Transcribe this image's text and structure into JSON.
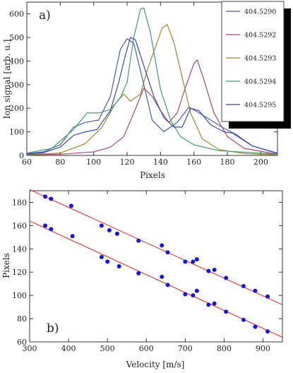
{
  "chart_data": [
    {
      "type": "line",
      "panel_label": "a)",
      "xlabel": "Pixels",
      "ylabel": "Ion signal [arb. u.]",
      "xlim": [
        60,
        210
      ],
      "ylim": [
        0,
        650
      ],
      "xticks": [
        60,
        80,
        100,
        120,
        140,
        160,
        180,
        200
      ],
      "yticks": [
        0,
        100,
        200,
        300,
        400,
        500,
        600
      ],
      "legend_position": "top-right",
      "series": [
        {
          "name": "404.5290",
          "color": "#4a5ab0",
          "points": [
            [
              60,
              8
            ],
            [
              70,
              15
            ],
            [
              80,
              45
            ],
            [
              88,
              120
            ],
            [
              95,
              140
            ],
            [
              103,
              150
            ],
            [
              110,
              250
            ],
            [
              116,
              450
            ],
            [
              120,
              495
            ],
            [
              124,
              475
            ],
            [
              128,
              360
            ],
            [
              135,
              150
            ],
            [
              142,
              100
            ],
            [
              150,
              140
            ],
            [
              157,
              205
            ],
            [
              162,
              185
            ],
            [
              170,
              150
            ],
            [
              178,
              115
            ],
            [
              185,
              90
            ],
            [
              195,
              40
            ],
            [
              210,
              10
            ]
          ]
        },
        {
          "name": "404.5292",
          "color": "#a8457a",
          "points": [
            [
              60,
              2
            ],
            [
              80,
              5
            ],
            [
              100,
              15
            ],
            [
              110,
              35
            ],
            [
              118,
              80
            ],
            [
              124,
              180
            ],
            [
              130,
              285
            ],
            [
              135,
              250
            ],
            [
              140,
              190
            ],
            [
              145,
              140
            ],
            [
              150,
              180
            ],
            [
              155,
              290
            ],
            [
              160,
              390
            ],
            [
              162,
              405
            ],
            [
              166,
              320
            ],
            [
              172,
              180
            ],
            [
              180,
              80
            ],
            [
              190,
              30
            ],
            [
              210,
              5
            ]
          ]
        },
        {
          "name": "404.5293",
          "color": "#9a8a2a",
          "points": [
            [
              60,
              3
            ],
            [
              80,
              10
            ],
            [
              95,
              50
            ],
            [
              105,
              120
            ],
            [
              113,
              220
            ],
            [
              118,
              260
            ],
            [
              122,
              230
            ],
            [
              128,
              260
            ],
            [
              132,
              360
            ],
            [
              137,
              460
            ],
            [
              141,
              540
            ],
            [
              144,
              555
            ],
            [
              148,
              480
            ],
            [
              153,
              330
            ],
            [
              158,
              180
            ],
            [
              165,
              70
            ],
            [
              175,
              25
            ],
            [
              190,
              8
            ],
            [
              210,
              2
            ]
          ]
        },
        {
          "name": "404.5294",
          "color": "#3e9e6e",
          "points": [
            [
              60,
              10
            ],
            [
              75,
              30
            ],
            [
              88,
              110
            ],
            [
              96,
              180
            ],
            [
              103,
              180
            ],
            [
              110,
              195
            ],
            [
              116,
              245
            ],
            [
              120,
              310
            ],
            [
              124,
              500
            ],
            [
              128,
              620
            ],
            [
              130,
              625
            ],
            [
              134,
              520
            ],
            [
              140,
              280
            ],
            [
              146,
              150
            ],
            [
              152,
              80
            ],
            [
              160,
              45
            ],
            [
              175,
              20
            ],
            [
              210,
              5
            ]
          ]
        },
        {
          "name": "404.5295",
          "color": "#3448b8",
          "points": [
            [
              60,
              5
            ],
            [
              70,
              12
            ],
            [
              80,
              35
            ],
            [
              88,
              85
            ],
            [
              95,
              100
            ],
            [
              102,
              110
            ],
            [
              110,
              190
            ],
            [
              115,
              310
            ],
            [
              119,
              425
            ],
            [
              122,
              500
            ],
            [
              125,
              490
            ],
            [
              130,
              380
            ],
            [
              136,
              250
            ],
            [
              142,
              160
            ],
            [
              148,
              120
            ],
            [
              153,
              120
            ],
            [
              158,
              200
            ],
            [
              163,
              190
            ],
            [
              170,
              130
            ],
            [
              178,
              100
            ],
            [
              183,
              95
            ],
            [
              195,
              40
            ],
            [
              210,
              8
            ]
          ]
        }
      ]
    },
    {
      "type": "scatter",
      "panel_label": "b)",
      "xlabel": "Velocity [m/s]",
      "ylabel": "Pixels",
      "xlim": [
        300,
        950
      ],
      "ylim": [
        60,
        190
      ],
      "xticks": [
        300,
        400,
        500,
        600,
        700,
        800,
        900
      ],
      "yticks": [
        60,
        80,
        100,
        120,
        140,
        160,
        180
      ],
      "point_color": "#1515e0",
      "fit_color": "#ee3030",
      "fit_lines": [
        {
          "x": [
            300,
            950
          ],
          "y": [
            191,
            92
          ]
        },
        {
          "x": [
            300,
            950
          ],
          "y": [
            164,
            64
          ]
        }
      ],
      "points": [
        [
          340,
          185
        ],
        [
          355,
          183
        ],
        [
          407,
          177
        ],
        [
          485,
          160
        ],
        [
          505,
          156
        ],
        [
          525,
          153
        ],
        [
          580,
          147
        ],
        [
          640,
          143
        ],
        [
          655,
          137
        ],
        [
          700,
          129
        ],
        [
          720,
          129
        ],
        [
          730,
          131
        ],
        [
          760,
          121
        ],
        [
          775,
          122
        ],
        [
          805,
          115
        ],
        [
          850,
          108
        ],
        [
          880,
          104
        ],
        [
          912,
          99
        ],
        [
          340,
          160
        ],
        [
          355,
          157
        ],
        [
          410,
          151
        ],
        [
          485,
          133
        ],
        [
          500,
          129
        ],
        [
          530,
          125
        ],
        [
          580,
          119
        ],
        [
          640,
          116
        ],
        [
          655,
          109
        ],
        [
          700,
          101
        ],
        [
          720,
          100
        ],
        [
          730,
          104
        ],
        [
          760,
          92
        ],
        [
          775,
          93
        ],
        [
          805,
          86
        ],
        [
          850,
          79
        ],
        [
          880,
          73
        ],
        [
          912,
          69
        ]
      ]
    }
  ]
}
